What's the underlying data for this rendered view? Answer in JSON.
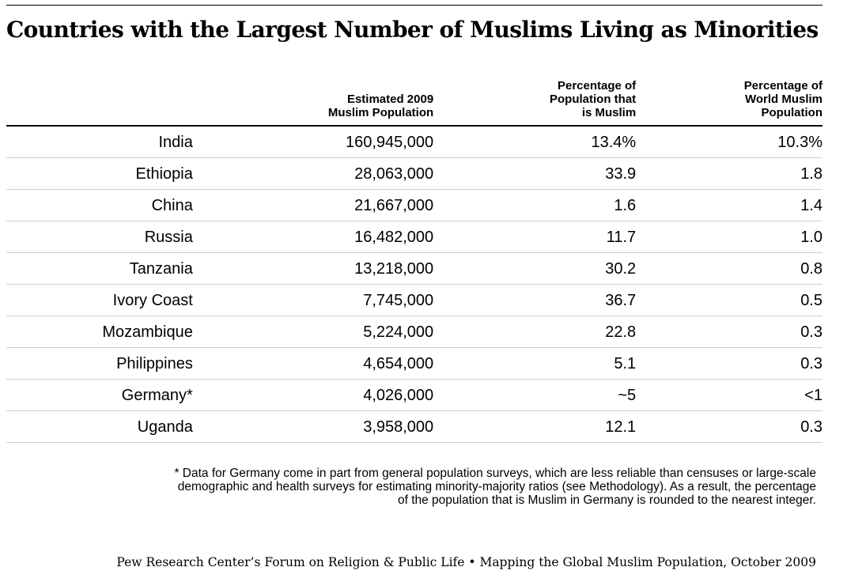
{
  "title": "Countries with the Largest Number of Muslims Living as Minorities",
  "chart_data": {
    "type": "table",
    "columns": [
      {
        "key": "country",
        "lines": [
          ""
        ]
      },
      {
        "key": "population",
        "lines": [
          "Estimated 2009",
          "Muslim Population"
        ]
      },
      {
        "key": "pct_population",
        "lines": [
          "Percentage of",
          "Population that",
          "is Muslim"
        ]
      },
      {
        "key": "pct_world",
        "lines": [
          "Percentage of",
          "World Muslim",
          "Population"
        ]
      }
    ],
    "rows": [
      {
        "country": "India",
        "population": "160,945,000",
        "pct_population": "13.4%",
        "pct_world": "10.3%"
      },
      {
        "country": "Ethiopia",
        "population": "28,063,000",
        "pct_population": "33.9",
        "pct_world": "1.8"
      },
      {
        "country": "China",
        "population": "21,667,000",
        "pct_population": "1.6",
        "pct_world": "1.4"
      },
      {
        "country": "Russia",
        "population": "16,482,000",
        "pct_population": "11.7",
        "pct_world": "1.0"
      },
      {
        "country": "Tanzania",
        "population": "13,218,000",
        "pct_population": "30.2",
        "pct_world": "0.8"
      },
      {
        "country": "Ivory Coast",
        "population": "7,745,000",
        "pct_population": "36.7",
        "pct_world": "0.5"
      },
      {
        "country": "Mozambique",
        "population": "5,224,000",
        "pct_population": "22.8",
        "pct_world": "0.3"
      },
      {
        "country": "Philippines",
        "population": "4,654,000",
        "pct_population": "5.1",
        "pct_world": "0.3"
      },
      {
        "country": "Germany*",
        "population": "4,026,000",
        "pct_population": "~5",
        "pct_world": "<1"
      },
      {
        "country": "Uganda",
        "population": "3,958,000",
        "pct_population": "12.1",
        "pct_world": "0.3"
      }
    ]
  },
  "footnote": {
    "lines": [
      "* Data for Germany come in part from general population surveys, which are less reliable than censuses or large-scale",
      "demographic and health surveys for estimating minority-majority ratios (see Methodology). As a result, the percentage",
      "of the population that is Muslim in Germany is rounded to the nearest integer."
    ]
  },
  "source": "Pew Research Center’s Forum on Religion & Public Life • Mapping the Global Muslim Population, October 2009"
}
